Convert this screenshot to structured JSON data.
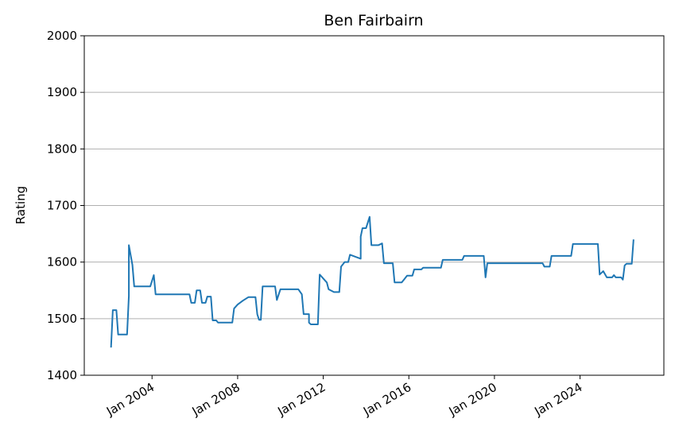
{
  "chart_data": {
    "type": "line",
    "title": "Ben Fairbairn",
    "y_label": "Rating",
    "x": [
      "2002-02",
      "2002-03",
      "2002-05",
      "2002-06",
      "2002-11",
      "2002-12",
      "2002-12",
      "2003-02",
      "2003-03",
      "2003-12",
      "2004-02",
      "2004-03",
      "2005-10",
      "2005-11",
      "2006-01",
      "2006-02",
      "2006-04",
      "2006-05",
      "2006-07",
      "2006-08",
      "2006-10",
      "2006-11",
      "2007-01",
      "2007-02",
      "2007-10",
      "2007-11",
      "2008-01",
      "2008-04",
      "2008-07",
      "2008-11",
      "2008-12",
      "2009-01",
      "2009-02",
      "2009-03",
      "2009-10",
      "2009-11",
      "2010-01",
      "2010-11",
      "2011-01",
      "2011-02",
      "2011-05",
      "2011-05",
      "2011-06",
      "2011-10",
      "2011-11",
      "2012-03",
      "2012-04",
      "2012-07",
      "2012-10",
      "2012-11",
      "2013-01",
      "2013-03",
      "2013-04",
      "2013-10",
      "2013-10",
      "2013-11",
      "2014-01",
      "2014-03",
      "2014-04",
      "2014-08",
      "2014-10",
      "2014-11",
      "2015-04",
      "2015-05",
      "2015-09",
      "2015-12",
      "2016-03",
      "2016-04",
      "2016-08",
      "2016-09",
      "2017-07",
      "2017-08",
      "2018-07",
      "2018-08",
      "2019-07",
      "2019-08",
      "2019-09",
      "2022-04",
      "2022-05",
      "2022-08",
      "2022-09",
      "2023-08",
      "2023-09",
      "2024-11",
      "2024-12",
      "2025-02",
      "2025-04",
      "2025-07",
      "2025-08",
      "2025-09",
      "2025-12",
      "2026-01",
      "2026-02",
      "2026-03",
      "2026-06",
      "2026-07"
    ],
    "series": [
      {
        "name": "Rating",
        "color": "#1f77b4",
        "values": [
          1449,
          1515,
          1515,
          1472,
          1472,
          1540,
          1630,
          1595,
          1557,
          1557,
          1577,
          1543,
          1543,
          1528,
          1528,
          1550,
          1550,
          1528,
          1528,
          1539,
          1539,
          1497,
          1497,
          1493,
          1493,
          1518,
          1525,
          1532,
          1538,
          1538,
          1508,
          1498,
          1498,
          1557,
          1557,
          1533,
          1552,
          1552,
          1543,
          1508,
          1508,
          1493,
          1490,
          1490,
          1578,
          1564,
          1552,
          1547,
          1547,
          1592,
          1600,
          1600,
          1613,
          1606,
          1645,
          1660,
          1660,
          1680,
          1630,
          1630,
          1633,
          1598,
          1598,
          1564,
          1564,
          1576,
          1576,
          1587,
          1587,
          1590,
          1590,
          1604,
          1604,
          1611,
          1611,
          1573,
          1598,
          1598,
          1592,
          1592,
          1611,
          1611,
          1632,
          1632,
          1578,
          1584,
          1573,
          1573,
          1577,
          1573,
          1573,
          1569,
          1594,
          1597,
          1597,
          1640
        ]
      }
    ],
    "xlim": [
      "2000-11",
      "2027-12"
    ],
    "xticks": [
      {
        "value": "2004-01",
        "label": "Jan 2004"
      },
      {
        "value": "2008-01",
        "label": "Jan 2008"
      },
      {
        "value": "2012-01",
        "label": "Jan 2012"
      },
      {
        "value": "2016-01",
        "label": "Jan 2016"
      },
      {
        "value": "2020-01",
        "label": "Jan 2020"
      },
      {
        "value": "2024-01",
        "label": "Jan 2024"
      }
    ],
    "ylim": [
      1400,
      2000
    ],
    "yticks": [
      1400,
      1500,
      1600,
      1700,
      1800,
      1900,
      2000
    ],
    "grid": "y"
  }
}
